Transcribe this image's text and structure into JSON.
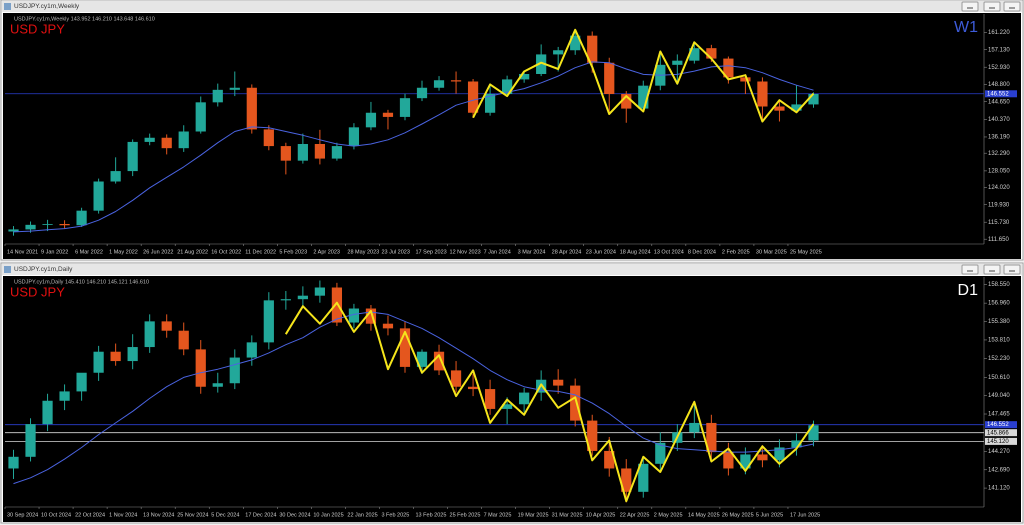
{
  "chart_data": [
    {
      "type": "candlestick",
      "window_title": "USDJPY.cy1m,Weekly",
      "info": "USDJPY.cy1m,Weekly  143.952 146.210 143.648 146.610",
      "symbol": "USD JPY",
      "timeframe": "W1",
      "timeframe_color": "#3d5bd9",
      "categories": [
        "14 Nov 2021",
        null,
        "9 Jan 2022",
        null,
        "6 Mar 2022",
        null,
        "1 May 2022",
        null,
        "26 Jun 2022",
        null,
        "21 Aug 2022",
        null,
        "16 Oct 2022",
        null,
        "11 Dec 2022",
        null,
        "5 Feb 2023",
        null,
        "2 Apr 2023",
        null,
        "28 May 2023",
        null,
        "23 Jul 2023",
        null,
        "17 Sep 2023",
        null,
        "12 Nov 2023",
        null,
        "7 Jan 2024",
        null,
        "3 Mar 2024",
        null,
        "28 Apr 2024",
        null,
        "23 Jun 2024",
        null,
        "18 Aug 2024",
        null,
        "13 Oct 2024",
        null,
        "8 Dec 2024",
        null,
        "2 Feb 2025",
        null,
        "30 Mar 2025",
        null,
        "25 May 2025",
        null
      ],
      "open": [
        113.5,
        114.0,
        115.1,
        115.3,
        115.0,
        118.5,
        125.5,
        128.0,
        135.0,
        136.0,
        133.5,
        137.5,
        144.5,
        147.5,
        148.0,
        138.0,
        134.0,
        130.5,
        134.5,
        131.0,
        134.0,
        138.5,
        142.0,
        141.0,
        145.5,
        148.0,
        149.8,
        149.5,
        142.0,
        146.5,
        150.0,
        151.3,
        156.0,
        157.0,
        160.5,
        154.0,
        146.5,
        143.0,
        148.5,
        153.5,
        154.5,
        157.5,
        155.0,
        150.5,
        149.5,
        143.5,
        142.5,
        144.0
      ],
      "high": [
        114.8,
        115.9,
        116.3,
        116.2,
        119.2,
        126.2,
        131.3,
        135.6,
        137.0,
        136.8,
        139.0,
        145.9,
        149.0,
        151.9,
        148.8,
        139.0,
        134.8,
        137.0,
        137.9,
        134.8,
        139.5,
        144.6,
        142.7,
        146.6,
        149.7,
        150.8,
        151.9,
        150.1,
        148.8,
        150.9,
        151.9,
        158.4,
        157.8,
        161.9,
        161.5,
        155.2,
        147.2,
        149.7,
        156.7,
        156.0,
        158.9,
        158.3,
        155.5,
        151.2,
        150.5,
        145.0,
        148.6,
        146.9
      ],
      "low": [
        112.5,
        113.2,
        113.6,
        114.2,
        114.6,
        117.8,
        125.0,
        126.8,
        134.2,
        132.0,
        132.6,
        137.0,
        143.5,
        146.0,
        137.0,
        133.0,
        127.2,
        129.8,
        129.6,
        130.5,
        133.2,
        137.8,
        138.0,
        140.2,
        144.8,
        147.3,
        146.6,
        140.8,
        141.3,
        145.9,
        149.2,
        150.8,
        151.9,
        155.9,
        151.6,
        141.7,
        139.6,
        142.3,
        147.4,
        148.7,
        153.8,
        154.2,
        149.0,
        146.5,
        139.9,
        139.9,
        142.1,
        143.2
      ],
      "close": [
        114.0,
        115.1,
        115.3,
        115.0,
        118.5,
        125.5,
        128.0,
        135.0,
        136.0,
        133.5,
        137.5,
        144.5,
        147.5,
        148.0,
        138.0,
        134.0,
        130.5,
        134.5,
        131.0,
        134.0,
        138.5,
        142.0,
        141.0,
        145.5,
        148.0,
        149.8,
        149.5,
        142.0,
        146.5,
        150.0,
        151.3,
        156.0,
        157.0,
        160.5,
        154.0,
        146.5,
        143.0,
        148.5,
        153.5,
        154.5,
        157.5,
        155.0,
        150.5,
        149.5,
        143.5,
        142.5,
        144.0,
        146.5
      ],
      "up_color": "#22a89a",
      "down_color": "#e4561e",
      "ma": {
        "color": "#4a63e0",
        "values": [
          113.4,
          113.6,
          113.9,
          114.2,
          114.8,
          116.2,
          118.3,
          121.0,
          124.0,
          126.5,
          129.0,
          131.8,
          134.8,
          137.5,
          138.6,
          138.4,
          137.5,
          136.6,
          135.5,
          134.5,
          134.0,
          134.5,
          135.5,
          137.2,
          139.3,
          141.5,
          143.8,
          145.0,
          146.0,
          146.9,
          147.8,
          149.2,
          150.8,
          152.8,
          154.2,
          154.0,
          152.5,
          151.2,
          151.0,
          151.2,
          152.0,
          153.0,
          153.3,
          152.8,
          151.6,
          150.0,
          148.6,
          147.4
        ]
      },
      "zigzag": {
        "color": "#f5e51b",
        "values": [
          null,
          null,
          null,
          null,
          null,
          null,
          null,
          null,
          null,
          null,
          null,
          null,
          null,
          null,
          null,
          null,
          null,
          null,
          null,
          null,
          null,
          null,
          null,
          null,
          null,
          null,
          null,
          140.8,
          148.8,
          146.0,
          151.9,
          154.0,
          152.5,
          161.9,
          153.0,
          141.7,
          146.0,
          142.3,
          156.7,
          149.0,
          158.9,
          155.0,
          150.0,
          151.0,
          139.9,
          145.0,
          142.1,
          146.6
        ]
      },
      "ylim": [
        110.5,
        165.7
      ],
      "yticks": [
        {
          "value": 161.22,
          "label": "161.220"
        },
        {
          "value": 157.13,
          "label": "157.130"
        },
        {
          "value": 152.93,
          "label": "152.930"
        },
        {
          "value": 148.8,
          "label": "148.800"
        },
        {
          "value": 144.65,
          "label": "144.650"
        },
        {
          "value": 140.37,
          "label": "140.370"
        },
        {
          "value": 136.19,
          "label": "136.190"
        },
        {
          "value": 132.29,
          "label": "132.290"
        },
        {
          "value": 128.05,
          "label": "128.050"
        },
        {
          "value": 124.02,
          "label": "124.020"
        },
        {
          "value": 119.93,
          "label": "119.930"
        },
        {
          "value": 115.73,
          "label": "115.730"
        },
        {
          "value": 111.65,
          "label": "111.650"
        }
      ],
      "price_levels": [
        {
          "value": 146.552,
          "label": "146.552",
          "color": "#2a3fd0"
        }
      ]
    },
    {
      "type": "candlestick",
      "window_title": "USDJPY.cy1m,Daily",
      "info": "USDJPY.cy1m,Daily  145.410 146.210 145.121 146.610",
      "symbol": "USD JPY",
      "timeframe": "D1",
      "timeframe_color": "#ffffff",
      "categories": [
        "30 Sep 2024",
        null,
        "10 Oct 2024",
        null,
        "22 Oct 2024",
        null,
        "1 Nov 2024",
        null,
        "13 Nov 2024",
        null,
        "25 Nov 2024",
        null,
        "5 Dec 2024",
        null,
        "17 Dec 2024",
        null,
        "30 Dec 2024",
        null,
        "10 Jan 2025",
        null,
        "22 Jan 2025",
        null,
        "3 Feb 2025",
        null,
        "13 Feb 2025",
        null,
        "25 Feb 2025",
        null,
        "7 Mar 2025",
        null,
        "19 Mar 2025",
        null,
        "31 Mar 2025",
        null,
        "10 Apr 2025",
        null,
        "22 Apr 2025",
        null,
        "2 May 2025",
        null,
        "14 May 2025",
        null,
        "26 May 2025",
        null,
        "5 Jun 2025",
        null,
        "17 Jun 2025",
        null
      ],
      "open": [
        142.8,
        143.8,
        146.6,
        148.6,
        149.4,
        151.0,
        152.8,
        152.0,
        153.2,
        155.4,
        154.6,
        153.0,
        149.8,
        150.1,
        152.3,
        153.6,
        157.2,
        157.3,
        157.6,
        158.3,
        155.3,
        156.5,
        155.2,
        154.8,
        151.5,
        152.8,
        151.2,
        149.8,
        149.6,
        147.9,
        148.3,
        149.3,
        150.4,
        149.9,
        146.9,
        144.3,
        142.8,
        140.8,
        143.2,
        145.0,
        145.9,
        146.7,
        144.2,
        142.8,
        144.0,
        143.5,
        144.6,
        145.2
      ],
      "high": [
        144.4,
        147.1,
        149.2,
        150.0,
        150.9,
        153.3,
        153.5,
        154.3,
        156.0,
        156.0,
        155.3,
        153.8,
        151.0,
        153.0,
        154.2,
        157.9,
        158.0,
        158.4,
        158.9,
        158.7,
        156.9,
        156.8,
        155.9,
        155.4,
        153.0,
        153.4,
        152.0,
        150.9,
        150.4,
        148.9,
        149.7,
        151.2,
        151.3,
        150.5,
        147.4,
        145.5,
        143.6,
        143.8,
        145.9,
        146.6,
        148.6,
        147.4,
        145.0,
        144.6,
        144.8,
        145.3,
        145.8,
        146.9
      ],
      "low": [
        141.9,
        143.4,
        146.0,
        147.8,
        148.6,
        150.3,
        151.6,
        151.3,
        152.7,
        154.0,
        152.5,
        149.2,
        149.3,
        149.6,
        151.6,
        153.0,
        156.4,
        156.7,
        157.0,
        155.0,
        154.8,
        154.6,
        154.2,
        151.0,
        150.9,
        150.8,
        149.3,
        149.0,
        147.4,
        146.6,
        147.6,
        148.6,
        149.2,
        146.4,
        143.9,
        142.1,
        139.9,
        140.3,
        142.6,
        144.3,
        145.4,
        143.6,
        142.2,
        142.3,
        142.9,
        142.9,
        143.9,
        144.7
      ],
      "close": [
        143.8,
        146.6,
        148.6,
        149.4,
        151.0,
        152.8,
        152.0,
        153.2,
        155.4,
        154.6,
        153.0,
        149.8,
        150.1,
        152.3,
        153.6,
        157.2,
        157.3,
        157.6,
        158.3,
        155.3,
        156.5,
        155.2,
        154.8,
        151.5,
        152.8,
        151.2,
        149.8,
        149.6,
        147.9,
        148.3,
        149.3,
        150.4,
        149.9,
        146.9,
        144.3,
        142.8,
        140.8,
        143.2,
        145.0,
        145.9,
        146.7,
        144.2,
        142.8,
        144.0,
        143.5,
        144.6,
        145.2,
        146.5
      ],
      "up_color": "#22a89a",
      "down_color": "#e4561e",
      "ma": {
        "color": "#4a63e0",
        "values": [
          141.5,
          142.0,
          142.7,
          143.6,
          144.6,
          145.7,
          146.7,
          147.7,
          148.8,
          149.8,
          150.6,
          151.0,
          151.3,
          151.7,
          152.1,
          152.7,
          153.4,
          154.0,
          154.9,
          155.6,
          156.0,
          156.2,
          156.0,
          155.4,
          154.8,
          154.0,
          153.1,
          152.2,
          151.2,
          150.4,
          149.8,
          149.5,
          149.4,
          149.1,
          148.4,
          147.5,
          146.4,
          145.4,
          144.8,
          144.5,
          144.4,
          144.3,
          144.2,
          144.2,
          144.3,
          144.4,
          144.6,
          144.9
        ]
      },
      "zigzag": {
        "color": "#f5e51b",
        "values": [
          null,
          null,
          null,
          null,
          null,
          null,
          null,
          null,
          null,
          null,
          null,
          null,
          null,
          null,
          null,
          null,
          154.3,
          156.7,
          155.2,
          157.0,
          154.5,
          156.3,
          151.3,
          154.5,
          151.0,
          152.5,
          149.0,
          151.2,
          146.7,
          148.7,
          147.4,
          150.0,
          148.0,
          148.9,
          143.5,
          145.2,
          140.0,
          143.8,
          142.5,
          145.5,
          148.5,
          143.4,
          144.5,
          142.6,
          144.7,
          143.2,
          144.5,
          146.6
        ]
      },
      "ylim": [
        139.5,
        159.2
      ],
      "yticks": [
        {
          "value": 158.55,
          "label": "158.550"
        },
        {
          "value": 156.96,
          "label": "156.960"
        },
        {
          "value": 155.38,
          "label": "155.380"
        },
        {
          "value": 153.81,
          "label": "153.810"
        },
        {
          "value": 152.23,
          "label": "152.230"
        },
        {
          "value": 150.61,
          "label": "150.610"
        },
        {
          "value": 149.04,
          "label": "149.040"
        },
        {
          "value": 147.465,
          "label": "147.465"
        },
        {
          "value": 144.27,
          "label": "144.270"
        },
        {
          "value": 142.69,
          "label": "142.690"
        },
        {
          "value": 141.12,
          "label": "141.120"
        }
      ],
      "price_levels": [
        {
          "value": 146.552,
          "label": "146.552",
          "color": "#2a3fd0"
        },
        {
          "value": 145.866,
          "label": "145.866",
          "color": "#d8d8d8"
        },
        {
          "value": 145.12,
          "label": "145.120",
          "color": "#d8d8d8"
        }
      ]
    }
  ]
}
